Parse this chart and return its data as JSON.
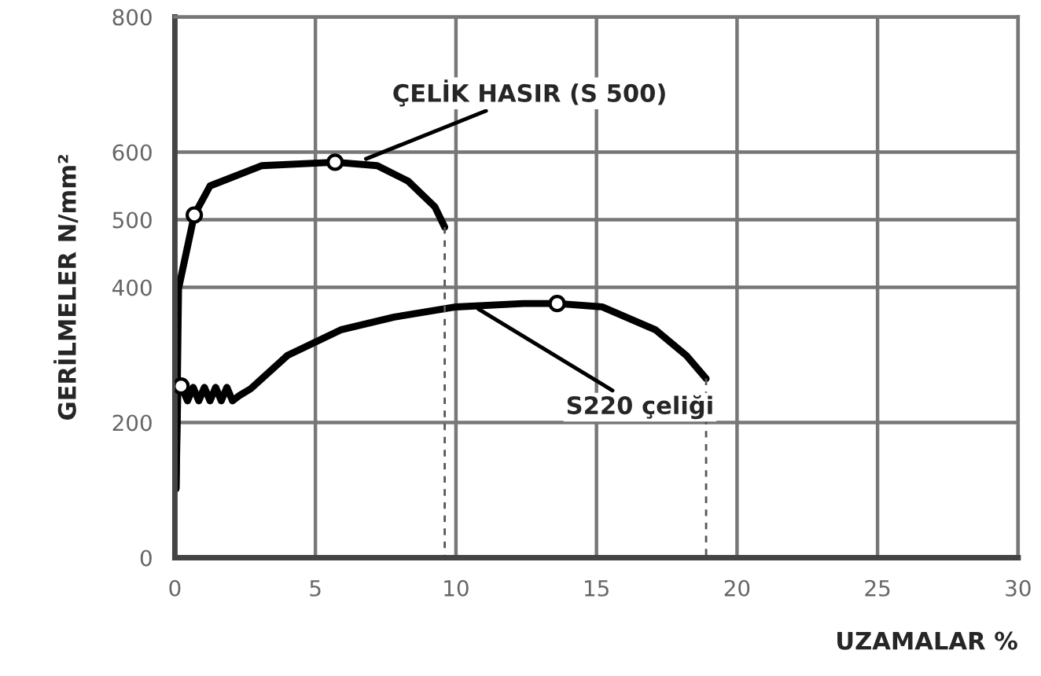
{
  "chart_data": {
    "type": "line",
    "xlabel": "UZAMALAR %",
    "ylabel": "GERİLMELER N/mm²",
    "xlim": [
      0,
      30
    ],
    "xticks": [
      0,
      5,
      10,
      15,
      20,
      25,
      30
    ],
    "ylim": [
      0,
      800
    ],
    "yticks": [
      0,
      200,
      400,
      500,
      600,
      800
    ],
    "grid": true,
    "legend": false,
    "series": [
      {
        "color": "#000000",
        "x": [
          0.04,
          0.13,
          0.69,
          1.25,
          3.1,
          5.7,
          7.2,
          8.3,
          9.25,
          9.6
        ],
        "values": [
          102,
          398,
          507,
          550,
          580,
          585,
          580,
          557,
          519,
          489
        ]
      },
      {
        "color": "#000000",
        "x": [
          0.04,
          0.1,
          0.22,
          0.45,
          0.65,
          0.85,
          1.05,
          1.25,
          1.45,
          1.65,
          1.85,
          2.05,
          2.3,
          2.7,
          4.0,
          5.9,
          7.8,
          10,
          12.4,
          13.6,
          15.2,
          17.1,
          18.2,
          18.9
        ],
        "values": [
          102,
          240,
          254,
          232,
          252,
          232,
          252,
          232,
          252,
          232,
          252,
          232,
          240,
          250,
          299,
          337,
          356,
          371,
          376,
          376,
          371,
          337,
          299,
          265
        ]
      },
      {
        "line_style": "dashed",
        "color": "#555555",
        "x": [
          9.6,
          9.6
        ],
        "values": [
          489,
          0
        ]
      },
      {
        "line_style": "dashed",
        "color": "#555555",
        "x": [
          18.9,
          18.9
        ],
        "values": [
          265,
          0
        ]
      },
      {
        "type": "scatter",
        "marker": "circle",
        "color": "#000000",
        "x": [
          0.69,
          5.7,
          0.22,
          13.6
        ],
        "values": [
          507,
          585,
          254,
          376
        ]
      }
    ],
    "annotations": [
      {
        "text": "ÇELİK HASIR (S 500)",
        "x": 6.8,
        "y": 590
      },
      {
        "text": "S220 çeliği",
        "x": 10.8,
        "y": 368
      }
    ]
  }
}
